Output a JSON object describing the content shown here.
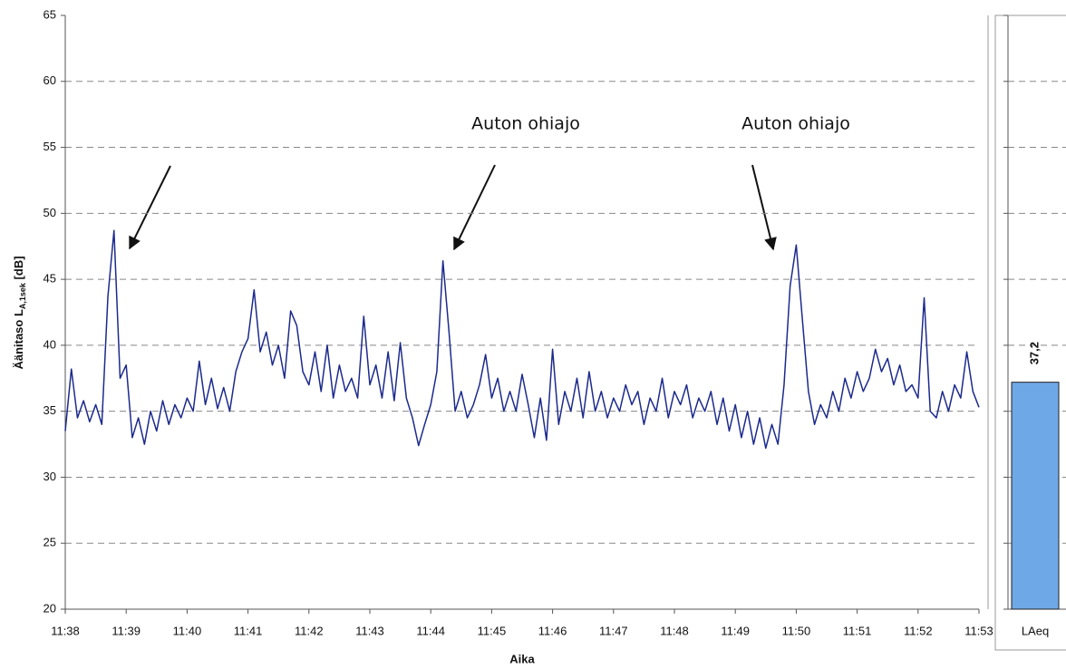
{
  "chart_data": [
    {
      "type": "line",
      "xlabel": "Aika",
      "ylabel": [
        "Äänitaso L",
        "A,1sek",
        " [dB]"
      ],
      "xlim": [
        698,
        713
      ],
      "xticks": [
        {
          "value": 698,
          "label": "11:38"
        },
        {
          "value": 699,
          "label": "11:39"
        },
        {
          "value": 700,
          "label": "11:40"
        },
        {
          "value": 701,
          "label": "11:41"
        },
        {
          "value": 702,
          "label": "11:42"
        },
        {
          "value": 703,
          "label": "11:43"
        },
        {
          "value": 704,
          "label": "11:44"
        },
        {
          "value": 705,
          "label": "11:45"
        },
        {
          "value": 706,
          "label": "11:46"
        },
        {
          "value": 707,
          "label": "11:47"
        },
        {
          "value": 708,
          "label": "11:48"
        },
        {
          "value": 709,
          "label": "11:49"
        },
        {
          "value": 710,
          "label": "11:50"
        },
        {
          "value": 711,
          "label": "11:51"
        },
        {
          "value": 712,
          "label": "11:52"
        },
        {
          "value": 713,
          "label": "11:53"
        }
      ],
      "ylim": [
        20,
        65
      ],
      "yticks": [
        20,
        25,
        30,
        35,
        40,
        45,
        50,
        55,
        60,
        65
      ],
      "grid": true,
      "annotations": [
        "Auton ohiajo",
        "Auton ohiajo"
      ],
      "series": [
        {
          "color": "#1c2a8c",
          "x": [
            698.0,
            698.1,
            698.2,
            698.3,
            698.4,
            698.5,
            698.6,
            698.7,
            698.8,
            698.9,
            699.0,
            699.1,
            699.2,
            699.3,
            699.4,
            699.5,
            699.6,
            699.7,
            699.8,
            699.9,
            700.0,
            700.1,
            700.2,
            700.3,
            700.4,
            700.5,
            700.6,
            700.7,
            700.8,
            700.9,
            701.0,
            701.1,
            701.2,
            701.3,
            701.4,
            701.5,
            701.6,
            701.7,
            701.8,
            701.9,
            702.0,
            702.1,
            702.2,
            702.3,
            702.4,
            702.5,
            702.6,
            702.7,
            702.8,
            702.9,
            703.0,
            703.1,
            703.2,
            703.3,
            703.4,
            703.5,
            703.6,
            703.7,
            703.8,
            703.9,
            704.0,
            704.1,
            704.2,
            704.3,
            704.4,
            704.5,
            704.6,
            704.7,
            704.8,
            704.9,
            705.0,
            705.1,
            705.2,
            705.3,
            705.4,
            705.5,
            705.6,
            705.7,
            705.8,
            705.9,
            706.0,
            706.1,
            706.2,
            706.3,
            706.4,
            706.5,
            706.6,
            706.7,
            706.8,
            706.9,
            707.0,
            707.1,
            707.2,
            707.3,
            707.4,
            707.5,
            707.6,
            707.7,
            707.8,
            707.9,
            708.0,
            708.1,
            708.2,
            708.3,
            708.4,
            708.5,
            708.6,
            708.7,
            708.8,
            708.9,
            709.0,
            709.1,
            709.2,
            709.3,
            709.4,
            709.5,
            709.6,
            709.7,
            709.8,
            709.9,
            710.0,
            710.1,
            710.2,
            710.3,
            710.4,
            710.5,
            710.6,
            710.7,
            710.8,
            710.9,
            711.0,
            711.1,
            711.2,
            711.3,
            711.4,
            711.5,
            711.6,
            711.7,
            711.8,
            711.9,
            712.0,
            712.1,
            712.2,
            712.3,
            712.4,
            712.5,
            712.6,
            712.7,
            712.8,
            712.9,
            713.0
          ],
          "values": [
            33.5,
            38.2,
            34.5,
            35.8,
            34.2,
            35.5,
            34,
            43.7,
            48.7,
            37.5,
            38.5,
            33,
            34.5,
            32.5,
            35,
            33.5,
            35.8,
            34,
            35.5,
            34.5,
            36,
            35,
            38.8,
            35.5,
            37.5,
            35.2,
            36.8,
            35,
            38,
            39.5,
            40.5,
            44.2,
            39.5,
            41,
            38.5,
            40,
            37.5,
            42.6,
            41.5,
            38,
            37,
            39.5,
            36.5,
            40,
            36,
            38.5,
            36.5,
            37.5,
            36,
            42.2,
            37,
            38.5,
            36,
            39.5,
            35.8,
            40.2,
            36,
            34.5,
            32.4,
            34,
            35.5,
            38,
            46.4,
            41,
            35,
            36.5,
            34.5,
            35.5,
            37,
            39.3,
            36,
            37.5,
            35,
            36.5,
            35,
            37.8,
            35.5,
            33,
            36,
            32.8,
            39.7,
            34,
            36.5,
            35,
            37.5,
            34.5,
            38,
            35,
            36.5,
            34.5,
            36,
            35,
            37,
            35.5,
            36.5,
            34,
            36,
            35,
            37.5,
            34.5,
            36.5,
            35.5,
            37,
            34.5,
            36,
            35,
            36.5,
            34,
            36,
            33.5,
            35.5,
            33,
            35,
            32.5,
            34.5,
            32.2,
            34,
            32.5,
            37,
            44.5,
            47.6,
            42,
            36.5,
            34,
            35.5,
            34.5,
            36.5,
            35,
            37.5,
            36,
            38,
            36.5,
            37.5,
            39.7,
            38,
            39,
            37,
            38.5,
            36.5,
            37,
            36,
            43.6,
            35,
            34.5,
            36.5,
            35,
            37,
            36,
            39.5,
            36.5,
            35.3
          ]
        }
      ]
    },
    {
      "type": "bar",
      "categories": [
        "LAeq"
      ],
      "values": [
        37.2
      ],
      "value_labels": [
        "37,2"
      ],
      "color": "#6fa8e6",
      "ylim": [
        20,
        65
      ],
      "yticks": [
        20,
        25,
        30,
        35,
        40,
        45,
        50,
        55,
        60,
        65
      ],
      "grid": true
    }
  ]
}
